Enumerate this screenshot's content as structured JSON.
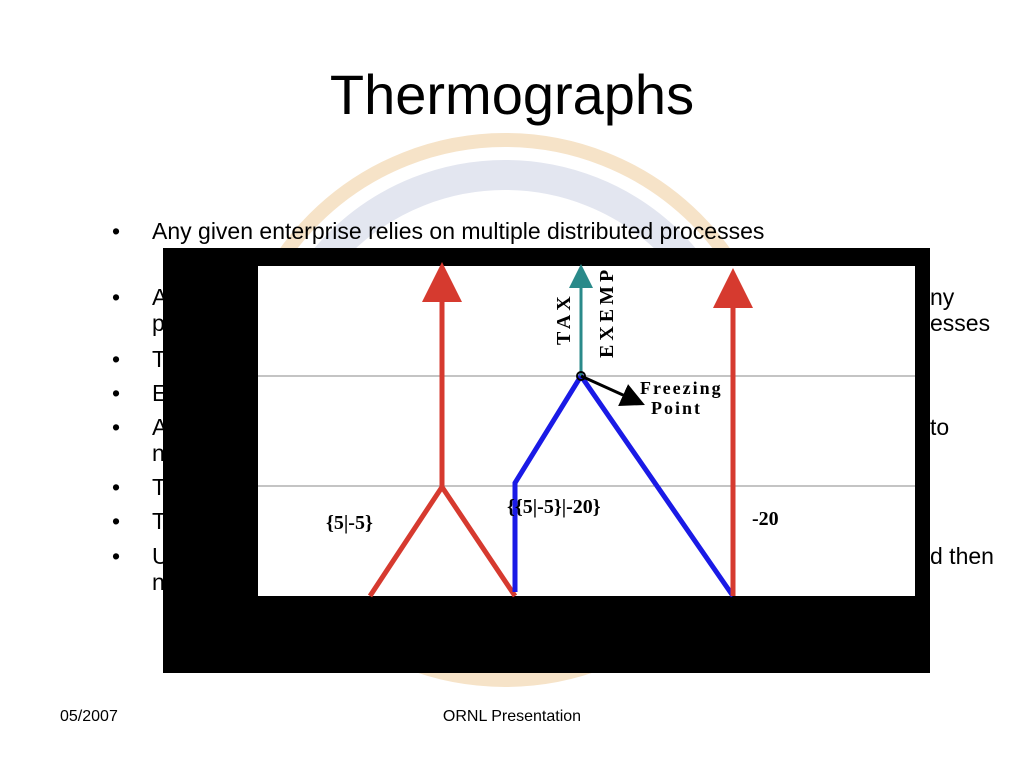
{
  "title": "Thermographs",
  "bullets": [
    {
      "left": [
        "Any given enterprise relies on multiple distributed processes"
      ],
      "right": []
    },
    {
      "left": [
        "A",
        "p"
      ],
      "right": [
        "ny",
        "esses"
      ]
    },
    {
      "left": [
        "T"
      ],
      "right": []
    },
    {
      "left": [
        "E"
      ],
      "right": []
    },
    {
      "left": [
        "A",
        "n"
      ],
      "right": [
        "to",
        ""
      ]
    },
    {
      "left": [
        "T"
      ],
      "right": []
    },
    {
      "left": [
        "T"
      ],
      "right": []
    },
    {
      "left": [
        "U",
        "n"
      ],
      "right": [
        "d then",
        ""
      ]
    }
  ],
  "diagram": {
    "tax": "TAX",
    "exempt": "EXEMP",
    "freezing": "Freezing",
    "point": "Point",
    "left_label": "{5|-5}",
    "middle_label": "{{5|-5}|-20}",
    "right_label": "-20"
  },
  "footer": {
    "date": "05/2007",
    "center": "ORNL Presentation"
  }
}
